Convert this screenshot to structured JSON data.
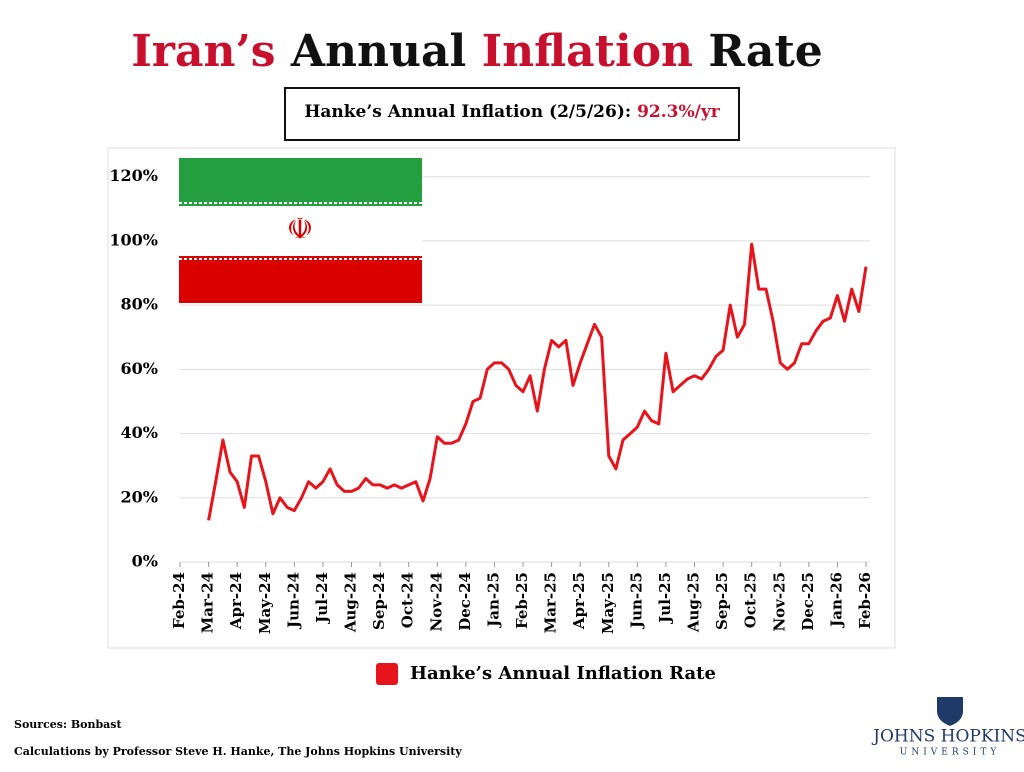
{
  "chart_data": {
    "type": "line",
    "title_parts": [
      {
        "text": "Iran’s",
        "color": "#c8102e"
      },
      {
        "text": "Annual",
        "color": "#111111"
      },
      {
        "text": "Inflation",
        "color": "#c8102e"
      },
      {
        "text": "Rate",
        "color": "#111111"
      }
    ],
    "subtitle": "Hanke’s Annual Inflation (2/5/26):",
    "subtitle_value": "92.3%/yr",
    "categories": [
      "Feb-24",
      null,
      null,
      null,
      "Mar-24",
      null,
      null,
      null,
      "Apr-24",
      null,
      null,
      null,
      "May-24",
      null,
      null,
      null,
      "Jun-24",
      null,
      null,
      null,
      "Jul-24",
      null,
      null,
      null,
      "Aug-24",
      null,
      null,
      null,
      "Sep-24",
      null,
      null,
      null,
      "Oct-24",
      null,
      null,
      null,
      "Nov-24",
      null,
      null,
      null,
      "Dec-24",
      null,
      null,
      null,
      "Jan-25",
      null,
      null,
      null,
      "Feb-25",
      null,
      null,
      null,
      "Mar-25",
      null,
      null,
      null,
      "Apr-25",
      null,
      null,
      null,
      "May-25",
      null,
      null,
      null,
      "Jun-25",
      null,
      null,
      null,
      "Jul-25",
      null,
      null,
      null,
      "Aug-25",
      null,
      null,
      null,
      "Sep-25",
      null,
      null,
      null,
      "Oct-25",
      null,
      null,
      null,
      "Nov-25",
      null,
      null,
      null,
      "Dec-25",
      null,
      null,
      null,
      "Jan-26",
      null,
      null,
      null,
      "Feb-26"
    ],
    "series": [
      {
        "name": "Hanke’s Annual Inflation Rate",
        "color": "#e8141c",
        "values": [
          null,
          null,
          null,
          null,
          13,
          25,
          38,
          28,
          25,
          17,
          33,
          33,
          25,
          15,
          20,
          17,
          16,
          20,
          25,
          23,
          25,
          29,
          24,
          22,
          22,
          23,
          26,
          24,
          24,
          23,
          24,
          23,
          24,
          25,
          19,
          26,
          39,
          37,
          37,
          38,
          43,
          50,
          51,
          60,
          62,
          62,
          60,
          55,
          53,
          58,
          47,
          60,
          69,
          67,
          69,
          55,
          62,
          68,
          74,
          70,
          33,
          29,
          38,
          40,
          42,
          47,
          44,
          43,
          65,
          53,
          55,
          57,
          58,
          57,
          60,
          64,
          66,
          80,
          70,
          74,
          99,
          85,
          85,
          75,
          62,
          60,
          62,
          68,
          68,
          72,
          75,
          76,
          83,
          75,
          85,
          78,
          92
        ]
      }
    ],
    "ylim": [
      0,
      128
    ],
    "yticks": [
      {
        "value": 0,
        "label": "0%"
      },
      {
        "value": 20,
        "label": "20%"
      },
      {
        "value": 40,
        "label": "40%"
      },
      {
        "value": 60,
        "label": "60%"
      },
      {
        "value": 80,
        "label": "80%"
      },
      {
        "value": 100,
        "label": "100%"
      },
      {
        "value": 120,
        "label": "120%"
      }
    ],
    "grid": true,
    "legend": "bottom"
  },
  "footer": {
    "sources": "Sources: Bonbast",
    "credit": "Calculations by Professor Steve H. Hanke, The Johns Hopkins University"
  },
  "logo": {
    "name": "JOHNS HOPKINS",
    "sub": "UNIVERSITY"
  }
}
